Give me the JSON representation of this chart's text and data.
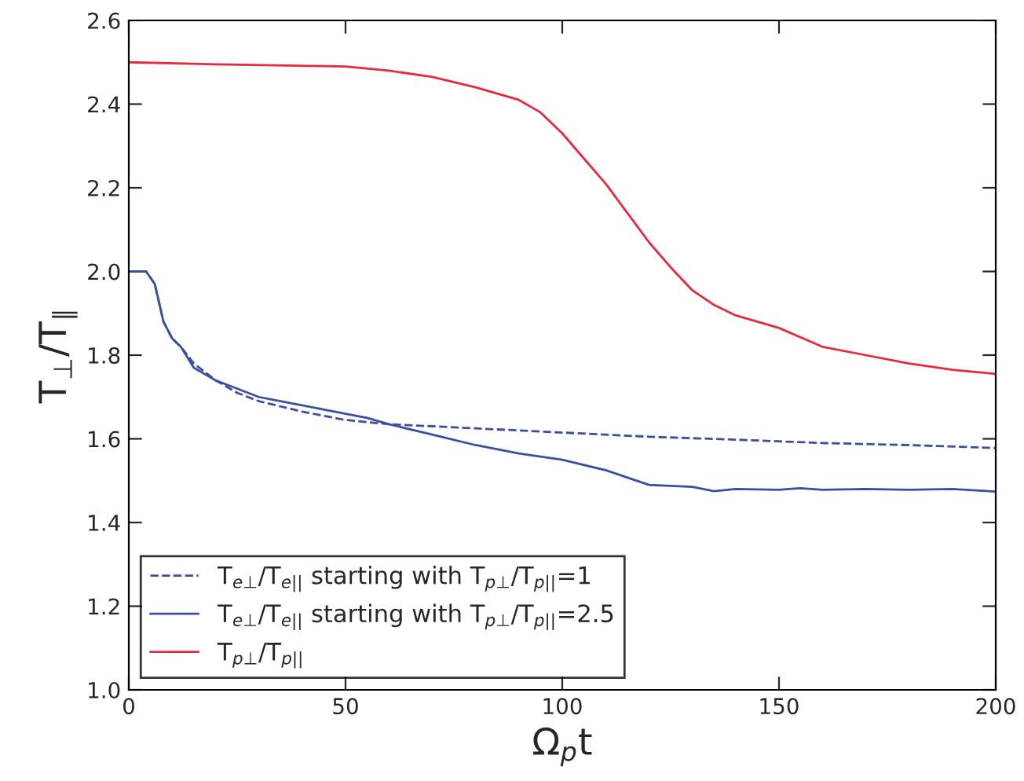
{
  "chart_data": {
    "type": "line",
    "xlabel": "Ω$_{p}$t",
    "ylabel": "T$_{⊥}$/T$_{∥}$",
    "xlim": [
      0,
      200
    ],
    "ylim": [
      1.0,
      2.6
    ],
    "xticks": [
      0,
      50,
      100,
      150,
      200
    ],
    "yticks": [
      {
        "value": 1.0,
        "label": "1.0"
      },
      1.2,
      1.4,
      1.6,
      1.8,
      {
        "value": 2.0,
        "label": "2.0"
      },
      2.2,
      2.4,
      2.6
    ],
    "grid": false,
    "legend": "bottom left",
    "marker": "none",
    "series": [
      {
        "name": "T$_{e⊥}$/T$_{e||}$ starting with T$_{p⊥}$/T$_{p||}$=1",
        "color": "#3a4fa0",
        "line_style": "dashed",
        "x": [
          0,
          4,
          6,
          8,
          10,
          12,
          15,
          20,
          25,
          30,
          40,
          50,
          60,
          80,
          100,
          120,
          140,
          160,
          180,
          200
        ],
        "values": [
          2.0,
          2.0,
          1.97,
          1.88,
          1.84,
          1.82,
          1.78,
          1.74,
          1.71,
          1.69,
          1.665,
          1.645,
          1.635,
          1.625,
          1.615,
          1.605,
          1.598,
          1.59,
          1.585,
          1.578
        ]
      },
      {
        "name": "T$_{e⊥}$/T$_{e||}$ starting with T$_{p⊥}$/T$_{p||}$=2.5",
        "color": "#3a4fa0",
        "line_style": "solid",
        "x": [
          0,
          4,
          6,
          8,
          10,
          12,
          15,
          20,
          30,
          40,
          50,
          55,
          60,
          70,
          80,
          90,
          100,
          110,
          120,
          130,
          135,
          140,
          150,
          155,
          160,
          170,
          180,
          190,
          200
        ],
        "values": [
          2.0,
          2.0,
          1.97,
          1.88,
          1.84,
          1.82,
          1.77,
          1.74,
          1.7,
          1.68,
          1.66,
          1.65,
          1.635,
          1.61,
          1.585,
          1.565,
          1.55,
          1.525,
          1.49,
          1.485,
          1.475,
          1.48,
          1.478,
          1.482,
          1.478,
          1.48,
          1.478,
          1.48,
          1.474
        ]
      },
      {
        "name": "T$_{p⊥}$/T$_{p||}$",
        "color": "#e8283c",
        "line_style": "solid",
        "x": [
          0,
          20,
          50,
          60,
          70,
          80,
          90,
          95,
          100,
          105,
          110,
          115,
          120,
          125,
          130,
          135,
          140,
          150,
          160,
          170,
          180,
          190,
          200
        ],
        "values": [
          2.5,
          2.495,
          2.49,
          2.48,
          2.465,
          2.44,
          2.41,
          2.38,
          2.33,
          2.27,
          2.21,
          2.14,
          2.07,
          2.01,
          1.955,
          1.92,
          1.895,
          1.865,
          1.82,
          1.8,
          1.78,
          1.765,
          1.755
        ]
      }
    ]
  }
}
